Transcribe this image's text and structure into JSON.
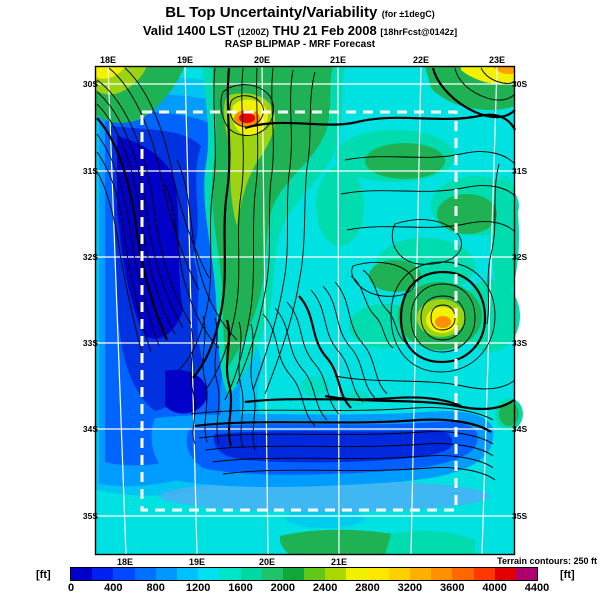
{
  "title": {
    "main": "BL Top Uncertainty/Variability",
    "qualifier": "(for ±1degC)"
  },
  "valid_line": {
    "prefix": "Valid 1400 LST",
    "zulu": "(1200Z)",
    "date": "THU 21 Feb 2008",
    "fcst": "[18hrFcst@0142z]"
  },
  "model_line": "RASP BLIPMAP - MRF Forecast",
  "map": {
    "top_lon_labels": [
      "18E",
      "19E",
      "20E",
      "21E",
      "22E",
      "23E"
    ],
    "bottom_lon_labels": [
      "18E",
      "19E",
      "20E",
      "21E"
    ],
    "lat_labels": [
      "30S",
      "31S",
      "32S",
      "33S",
      "34S",
      "35S"
    ],
    "terrain_note": "Terrain contours: 250 ft"
  },
  "colorbar": {
    "unit_left": "[ft]",
    "unit_right": "[ft]",
    "ticks": [
      "0",
      "400",
      "800",
      "1200",
      "1600",
      "2000",
      "2400",
      "2800",
      "3200",
      "3600",
      "4000",
      "4400"
    ],
    "colors": [
      "#0000C8",
      "#0020F0",
      "#0048FF",
      "#0070FF",
      "#0098FF",
      "#00C0FF",
      "#00E0F0",
      "#00E4C8",
      "#00D8A0",
      "#20C468",
      "#10A838",
      "#60C818",
      "#A8D800",
      "#F0F000",
      "#FFE800",
      "#FFD000",
      "#FFB000",
      "#FF9000",
      "#FF6800",
      "#FF3800",
      "#E00000",
      "#B00070"
    ]
  },
  "chart_data": {
    "type": "heatmap",
    "title": "BL Top Uncertainty/Variability (for ±1degC)",
    "valid": "Valid 1400 LST (1200Z) THU 21 Feb 2008 [18hrFcst@0142z]",
    "source": "RASP BLIPMAP - MRF Forecast",
    "units": "ft",
    "x_axis": {
      "top_ticks": [
        "18E",
        "19E",
        "20E",
        "21E",
        "22E",
        "23E"
      ],
      "bottom_ticks": [
        "18E",
        "19E",
        "20E",
        "21E"
      ]
    },
    "y_axis": {
      "ticks": [
        "30S",
        "31S",
        "32S",
        "33S",
        "34S",
        "35S"
      ]
    },
    "color_scale": {
      "min_ft": 0,
      "max_ft": 4400,
      "step_ft": 200,
      "tick_interval_ft": 400
    },
    "overlay": "terrain contours at 250 ft interval; white lat/lon graticule; white dashed inner model domain box (~18.6E-22.7E, 30.5S-34.9S)",
    "notable_features": [
      {
        "feature": "red maximum spot ~4000 ft",
        "lon": "19.8E",
        "lat": "30.4S"
      },
      {
        "feature": "orange/yellow maximum ~2800-3200 ft",
        "lon": "22.3E",
        "lat": "32.7S"
      },
      {
        "feature": "yellow-orange corner maximum ~2800 ft",
        "lon": "23E",
        "lat": "30S"
      },
      {
        "feature": "large dark-blue minimum <400 ft (west coast interior)",
        "lon": "18-19.5E",
        "lat": "31S-34S"
      },
      {
        "feature": "dark-blue low band along south coast ranges",
        "lon": "19E-22E",
        "lat": "34S"
      },
      {
        "feature": "background cyan ~800-1200 ft over most of domain",
        "lon": "-",
        "lat": "-"
      },
      {
        "feature": "green ridges ~1600-2000 ft along Cape fold mountains",
        "lon": "19-22E",
        "lat": "30-33.5S"
      }
    ]
  }
}
